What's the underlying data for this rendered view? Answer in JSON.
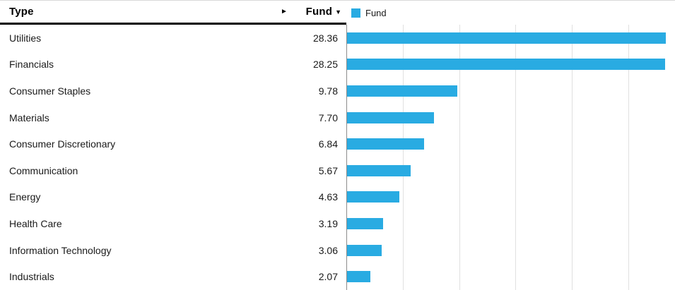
{
  "widget": {
    "columns": {
      "type_label": "Type",
      "fund_label": "Fund",
      "sort_indicator": "▼",
      "expand_arrow": "►"
    },
    "rows": [
      {
        "type": "Utilities",
        "fund": "28.36"
      },
      {
        "type": "Financials",
        "fund": "28.25"
      },
      {
        "type": "Consumer Staples",
        "fund": "9.78"
      },
      {
        "type": "Materials",
        "fund": "7.70"
      },
      {
        "type": "Consumer Discretionary",
        "fund": "6.84"
      },
      {
        "type": "Communication",
        "fund": "5.67"
      },
      {
        "type": "Energy",
        "fund": "4.63"
      },
      {
        "type": "Health Care",
        "fund": "3.19"
      },
      {
        "type": "Information Technology",
        "fund": "3.06"
      },
      {
        "type": "Industrials",
        "fund": "2.07"
      }
    ]
  },
  "legend": {
    "label": "Fund",
    "color": "#29abe2"
  },
  "colors": {
    "bar": "#29abe2",
    "gridline": "#e0e0e0",
    "axis": "#8c8c8c",
    "header_border": "#000000",
    "text": "#1a1a1a"
  },
  "chart_data": {
    "type": "bar",
    "orientation": "horizontal",
    "title": "",
    "xlabel": "",
    "ylabel": "Type",
    "series_name": "Fund",
    "categories": [
      "Utilities",
      "Financials",
      "Consumer Staples",
      "Materials",
      "Consumer Discretionary",
      "Communication",
      "Energy",
      "Health Care",
      "Information Technology",
      "Industrials"
    ],
    "values": [
      28.36,
      28.25,
      9.78,
      7.7,
      6.84,
      5.67,
      4.63,
      3.19,
      3.06,
      2.07
    ],
    "xlim": [
      0,
      29.15
    ],
    "gridline_step": 5,
    "grid": true,
    "legend_position": "top",
    "bar_color": "#29abe2"
  }
}
